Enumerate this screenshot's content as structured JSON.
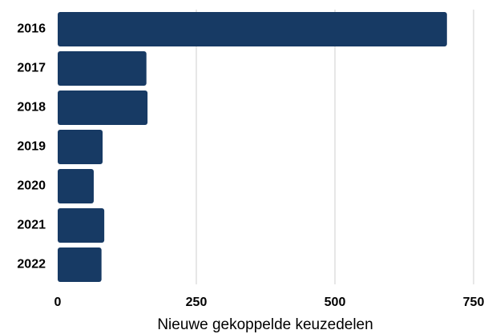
{
  "chart_data": {
    "type": "barh",
    "x_label": "Nieuwe gekoppelde keuzedelen",
    "categories": [
      "2016",
      "2017",
      "2018",
      "2019",
      "2020",
      "2021",
      "2022"
    ],
    "values": [
      702,
      160,
      162,
      81,
      65,
      84,
      79
    ],
    "color": "#173a64",
    "xlim": [
      0,
      750
    ],
    "xticks": [
      0,
      250,
      500,
      750
    ],
    "grid": true
  }
}
